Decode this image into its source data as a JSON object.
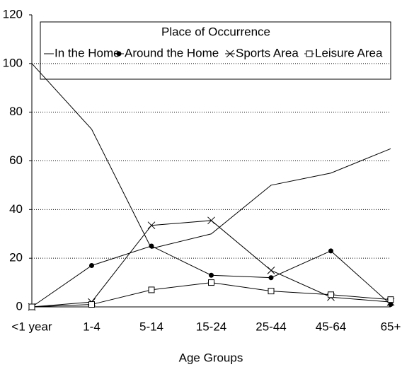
{
  "chart_data": {
    "type": "line",
    "legend_title": "Place of Occurrence",
    "x_label": "Age Groups",
    "categories": [
      "<1 year",
      "1-4",
      "5-14",
      "15-24",
      "25-44",
      "45-64",
      "65+"
    ],
    "series": [
      {
        "name": "In the Home",
        "color": "#000000",
        "marker": "none",
        "values": [
          100,
          73,
          24,
          30,
          50,
          55,
          65
        ]
      },
      {
        "name": "Around the Home",
        "color": "#000000",
        "marker": "circle",
        "values": [
          0,
          17,
          25,
          13,
          12,
          23,
          1
        ]
      },
      {
        "name": "Sports Area",
        "color": "#000000",
        "marker": "x",
        "values": [
          0,
          2,
          33.5,
          35.5,
          15,
          4,
          2
        ]
      },
      {
        "name": "Leisure Area",
        "color": "#000000",
        "marker": "square",
        "values": [
          0,
          1,
          7,
          10,
          6.5,
          5,
          3
        ]
      }
    ],
    "ylim": [
      0,
      120
    ],
    "yticks": [
      0,
      20,
      40,
      60,
      80,
      100,
      120
    ],
    "grid": true
  }
}
